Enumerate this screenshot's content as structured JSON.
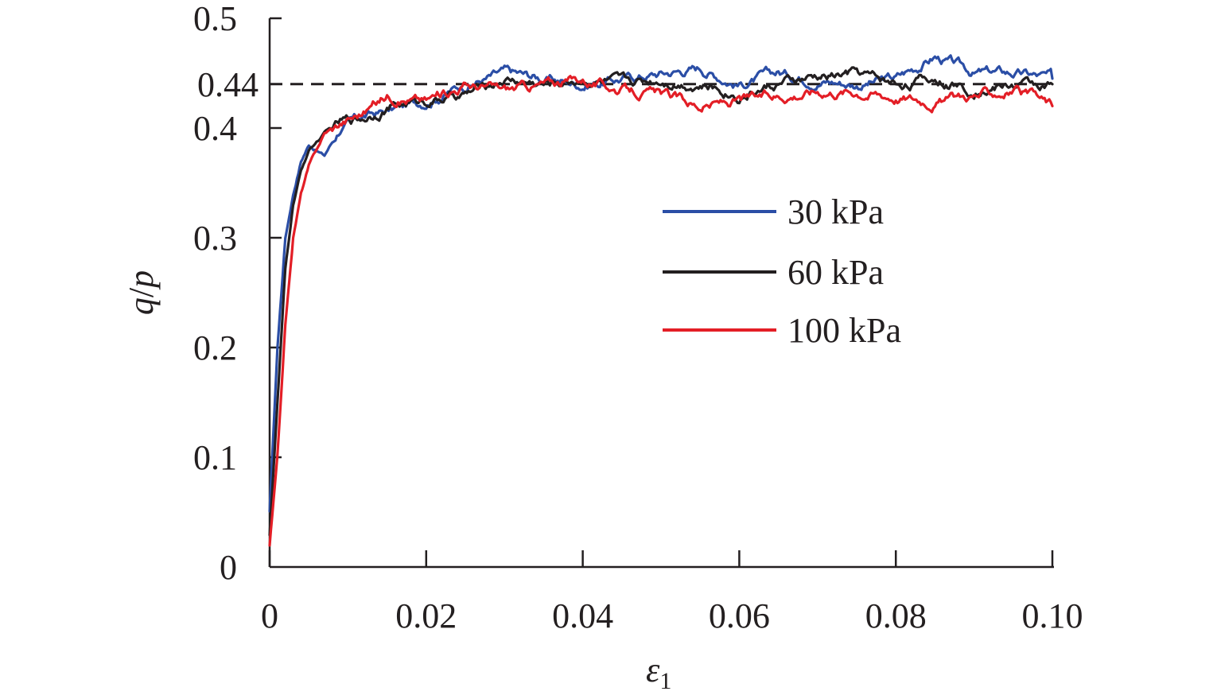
{
  "chart_data": {
    "type": "line",
    "title": "",
    "xlabel": "ε",
    "xlabel_subscript": "1",
    "ylabel_q": "q",
    "ylabel_slash": "/",
    "ylabel_p": "p",
    "xlim": [
      0,
      0.1
    ],
    "ylim": [
      0,
      0.5
    ],
    "x_ticks": [
      0,
      0.02,
      0.04,
      0.06,
      0.08,
      0.1
    ],
    "x_tick_labels": [
      "0",
      "0.02",
      "0.04",
      "0.06",
      "0.08",
      "0.10"
    ],
    "y_ticks": [
      0,
      0.1,
      0.2,
      0.3,
      0.4,
      0.5
    ],
    "y_tick_labels": [
      "0",
      "0.1",
      "0.2",
      "0.3",
      "0.4",
      "0.5"
    ],
    "reference_line": {
      "value": 0.44,
      "label": "0.44",
      "style": "dashed",
      "color": "#231f20"
    },
    "legend_position": "right-center",
    "series": [
      {
        "name": "30 kPa",
        "color": "#2b4ea6",
        "x": [
          0,
          0.001,
          0.002,
          0.003,
          0.004,
          0.005,
          0.007,
          0.009,
          0.012,
          0.015,
          0.02,
          0.025,
          0.03,
          0.035,
          0.04,
          0.045,
          0.05,
          0.055,
          0.06,
          0.065,
          0.07,
          0.075,
          0.08,
          0.085,
          0.09,
          0.095,
          0.1
        ],
        "values": [
          0.05,
          0.2,
          0.3,
          0.34,
          0.37,
          0.385,
          0.375,
          0.4,
          0.41,
          0.415,
          0.425,
          0.44,
          0.45,
          0.445,
          0.44,
          0.445,
          0.45,
          0.455,
          0.44,
          0.45,
          0.445,
          0.44,
          0.445,
          0.465,
          0.45,
          0.45,
          0.445
        ]
      },
      {
        "name": "60 kPa",
        "color": "#231f20",
        "x": [
          0,
          0.001,
          0.002,
          0.003,
          0.004,
          0.005,
          0.007,
          0.009,
          0.012,
          0.015,
          0.02,
          0.025,
          0.03,
          0.035,
          0.04,
          0.045,
          0.05,
          0.055,
          0.06,
          0.065,
          0.07,
          0.075,
          0.08,
          0.085,
          0.09,
          0.095,
          0.1
        ],
        "values": [
          0.03,
          0.15,
          0.27,
          0.33,
          0.36,
          0.38,
          0.395,
          0.405,
          0.41,
          0.42,
          0.425,
          0.43,
          0.445,
          0.44,
          0.445,
          0.44,
          0.445,
          0.44,
          0.43,
          0.44,
          0.445,
          0.45,
          0.44,
          0.445,
          0.435,
          0.44,
          0.44
        ]
      },
      {
        "name": "100 kPa",
        "color": "#e31e26",
        "x": [
          0,
          0.001,
          0.002,
          0.003,
          0.004,
          0.005,
          0.007,
          0.009,
          0.012,
          0.015,
          0.02,
          0.025,
          0.03,
          0.035,
          0.04,
          0.045,
          0.05,
          0.055,
          0.06,
          0.065,
          0.07,
          0.075,
          0.08,
          0.085,
          0.09,
          0.095,
          0.1
        ],
        "values": [
          0.02,
          0.1,
          0.22,
          0.3,
          0.34,
          0.365,
          0.395,
          0.405,
          0.415,
          0.43,
          0.425,
          0.44,
          0.435,
          0.44,
          0.445,
          0.435,
          0.43,
          0.42,
          0.425,
          0.43,
          0.435,
          0.435,
          0.43,
          0.425,
          0.43,
          0.435,
          0.42
        ]
      }
    ]
  }
}
